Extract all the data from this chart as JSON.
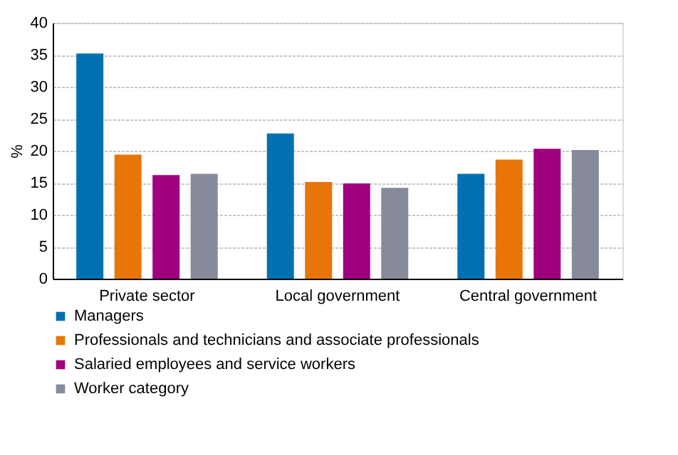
{
  "chart_data": {
    "type": "bar",
    "ylabel": "%",
    "categories": [
      "Private sector",
      "Local government",
      "Central government"
    ],
    "series": [
      {
        "name": "Managers",
        "color": "#0070b0",
        "values": [
          35.2,
          22.7,
          16.4
        ]
      },
      {
        "name": "Professionals and technicians and associate professionals",
        "color": "#e87508",
        "values": [
          19.4,
          15.1,
          18.6
        ]
      },
      {
        "name": "Salaried employees and service workers",
        "color": "#a0007e",
        "values": [
          16.2,
          14.9,
          20.3
        ]
      },
      {
        "name": "Worker category",
        "color": "#878a9b",
        "values": [
          16.4,
          14.2,
          20.1
        ]
      }
    ],
    "ylim": [
      0,
      40
    ],
    "yticks": [
      0,
      5,
      10,
      15,
      20,
      25,
      30,
      35,
      40
    ],
    "grid": "y",
    "legend": "bottom"
  }
}
